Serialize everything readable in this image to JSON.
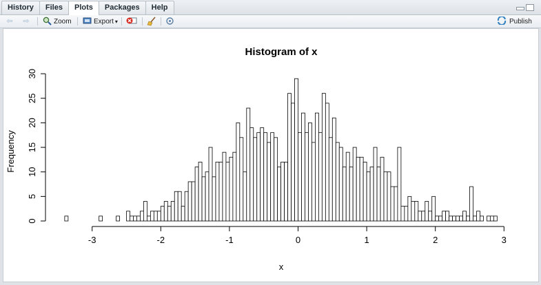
{
  "tabs": [
    {
      "label": "History"
    },
    {
      "label": "Files"
    },
    {
      "label": "Plots",
      "active": true
    },
    {
      "label": "Packages"
    },
    {
      "label": "Help"
    }
  ],
  "toolbar": {
    "zoom_label": "Zoom",
    "export_label": "Export",
    "export_caret": "▾",
    "publish_label": "Publish"
  },
  "icons": [
    "back-arrow-icon",
    "forward-arrow-icon",
    "zoom-icon",
    "export-icon",
    "remove-plot-icon",
    "broom-icon",
    "refresh-icon",
    "publish-icon"
  ],
  "chart_data": {
    "type": "bar",
    "title": "Histogram of x",
    "xlabel": "x",
    "ylabel": "Frequency",
    "xlim": [
      -3.4,
      2.9
    ],
    "ylim": [
      0,
      30
    ],
    "bin_width": 0.05,
    "bin_start": -3.4,
    "x_ticks": [
      -3,
      -2,
      -1,
      0,
      1,
      2,
      3
    ],
    "y_ticks": [
      0,
      5,
      10,
      15,
      20,
      25,
      30
    ],
    "values": [
      1,
      0,
      0,
      0,
      0,
      0,
      0,
      0,
      0,
      0,
      1,
      0,
      0,
      0,
      0,
      1,
      0,
      0,
      2,
      1,
      1,
      1,
      2,
      4,
      1,
      2,
      2,
      2,
      3,
      4,
      3,
      4,
      6,
      6,
      3,
      6,
      8,
      8,
      11,
      12,
      9,
      10,
      15,
      9,
      12,
      12,
      14,
      12,
      13,
      14,
      20,
      17,
      10,
      23,
      19,
      17,
      18,
      19,
      18,
      16,
      18,
      17,
      11,
      12,
      12,
      26,
      24,
      29,
      18,
      22,
      18,
      20,
      16,
      22,
      18,
      26,
      24,
      17,
      21,
      16,
      15,
      11,
      14,
      11,
      15,
      13,
      13,
      12,
      10,
      11,
      15,
      11,
      13,
      10,
      10,
      7,
      7,
      15,
      3,
      3,
      5,
      4,
      4,
      2,
      2,
      4,
      2,
      5,
      1,
      1,
      2,
      2,
      1,
      1,
      1,
      1,
      2,
      1,
      7,
      1,
      2,
      1,
      0,
      1,
      1,
      1
    ]
  },
  "colors": {
    "bar_fill": "#ffffff",
    "bar_stroke": "#000000",
    "plot_bg": "#ffffff"
  }
}
